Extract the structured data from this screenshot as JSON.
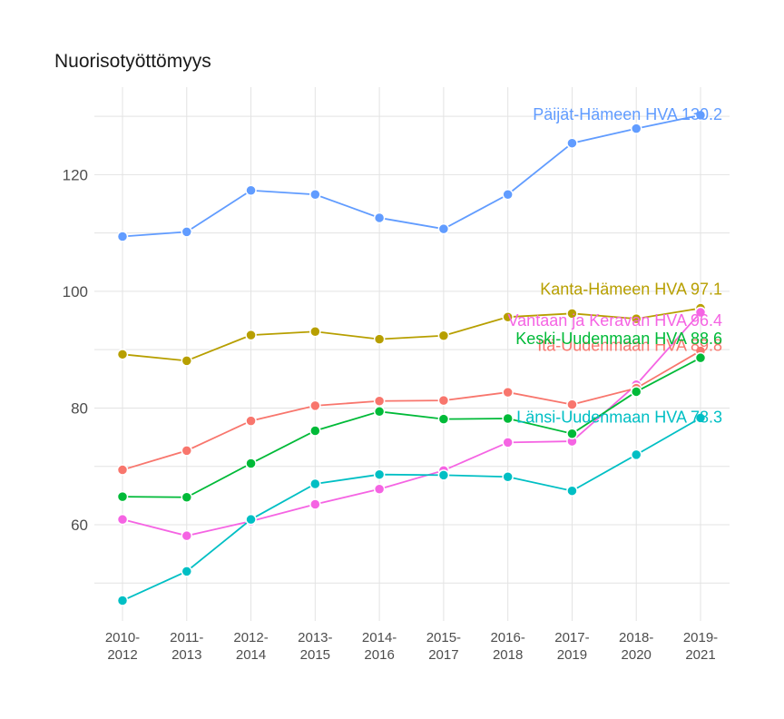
{
  "chart_data": {
    "type": "line",
    "title": "Nuorisotyöttömyys",
    "xlabel": "",
    "ylabel": "",
    "categories": [
      "2010-2012",
      "2011-2013",
      "2012-2014",
      "2013-2015",
      "2014-2016",
      "2015-2017",
      "2016-2018",
      "2017-2019",
      "2018-2020",
      "2019-2021"
    ],
    "category_lines": [
      [
        "2010-",
        "2012"
      ],
      [
        "2011-",
        "2013"
      ],
      [
        "2012-",
        "2014"
      ],
      [
        "2013-",
        "2015"
      ],
      [
        "2014-",
        "2016"
      ],
      [
        "2015-",
        "2017"
      ],
      [
        "2016-",
        "2018"
      ],
      [
        "2017-",
        "2019"
      ],
      [
        "2018-",
        "2020"
      ],
      [
        "2019-",
        "2021"
      ]
    ],
    "ylim": [
      43.5,
      135
    ],
    "yticks": [
      60,
      80,
      100,
      120
    ],
    "grid": true,
    "legend": "none",
    "series": [
      {
        "name": "Päijät-Hämeen HVA",
        "label": "Päijät-Hämeen HVA 130.2",
        "color": "#619CFF",
        "values": [
          109.4,
          110.2,
          117.3,
          116.6,
          112.6,
          110.7,
          116.6,
          125.4,
          127.9,
          130.2
        ]
      },
      {
        "name": "Kanta-Hämeen HVA",
        "label": "Kanta-Hämeen HVA 97.1",
        "color": "#B79F00",
        "values": [
          89.2,
          88.1,
          92.5,
          93.1,
          91.8,
          92.4,
          95.6,
          96.2,
          95.3,
          97.1
        ]
      },
      {
        "name": "Vantaan ja Keravan HVA",
        "label": "Vantaan ja Keravan HVA 96.4",
        "color": "#F564E3",
        "values": [
          60.9,
          58.1,
          60.6,
          63.5,
          66.1,
          69.3,
          74.1,
          74.3,
          84.0,
          96.4
        ]
      },
      {
        "name": "Itä-Uudenmaan HVA",
        "label": "Itä-Uudenmaan HVA 89.8",
        "color": "#F8766D",
        "values": [
          69.4,
          72.7,
          77.8,
          80.4,
          81.2,
          81.3,
          82.7,
          80.6,
          83.4,
          89.8
        ]
      },
      {
        "name": "Keski-Uudenmaan HVA",
        "label": "Keski-Uudenmaan HVA 88.6",
        "color": "#00BA38",
        "values": [
          64.8,
          64.7,
          70.5,
          76.1,
          79.4,
          78.1,
          78.2,
          75.6,
          82.8,
          88.6
        ]
      },
      {
        "name": "Länsi-Uudenmaan HVA",
        "label": "Länsi-Uudenmaan HVA 78.3",
        "color": "#00BFC4",
        "values": [
          47.0,
          52.0,
          60.9,
          67.0,
          68.6,
          68.5,
          68.2,
          65.8,
          72.0,
          78.3
        ]
      }
    ]
  }
}
